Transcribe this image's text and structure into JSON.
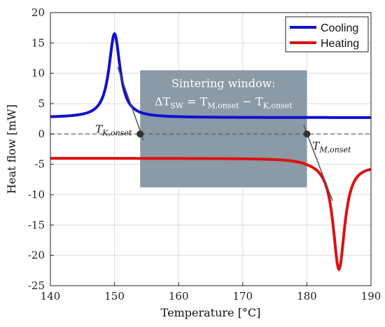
{
  "chart_data": {
    "type": "line",
    "xlabel": "Temperature [°C]",
    "ylabel": "Heat flow [mW]",
    "xlim": [
      140,
      190
    ],
    "ylim": [
      -25,
      20
    ],
    "xticks": [
      140,
      150,
      160,
      170,
      180,
      190
    ],
    "yticks": [
      -25,
      -20,
      -15,
      -10,
      -5,
      0,
      5,
      10,
      15,
      20
    ],
    "grid": true,
    "legend_position": "top-right",
    "series": [
      {
        "name": "Cooling",
        "color": "#1010d0",
        "baseline": 2.7,
        "peak_x": 150,
        "peak_y": 16.5,
        "peak_halfwidth": 1.05
      },
      {
        "name": "Heating",
        "color": "#dd1111",
        "baseline": -4.0,
        "baseline_drift": -0.45,
        "peak_x": 185,
        "peak_y": -22.3,
        "peak_halfwidth": 1.1,
        "end_y": -5.0
      }
    ],
    "zero_line": 0,
    "sintering_window": {
      "x": [
        154,
        180
      ],
      "y": [
        -8.8,
        10.5
      ],
      "title": "Sintering window:",
      "formula": {
        "delta": "ΔT",
        "delta_sub": "SW",
        "eq": " = ",
        "t1": "T",
        "t1_sub": "M,onset",
        "minus": " − ",
        "t2": "T",
        "t2_sub": "K,onset"
      },
      "color": "#8a9aa6"
    },
    "annotations": [
      {
        "name": "TK-onset",
        "main": "T",
        "sub": "K,onset",
        "point": [
          154,
          0
        ],
        "tangent": [
          [
            150.5,
            11.0
          ],
          [
            154.5,
            -1.0
          ]
        ]
      },
      {
        "name": "TM-onset",
        "main": "T",
        "sub": "M,onset",
        "point": [
          180,
          0
        ],
        "tangent": [
          [
            179.5,
            1.5
          ],
          [
            184.0,
            -11.0
          ]
        ]
      }
    ]
  }
}
